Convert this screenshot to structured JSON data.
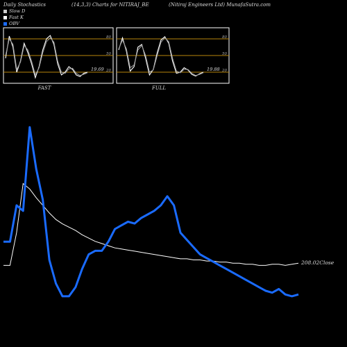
{
  "header": {
    "title": "Daily Stochastics",
    "params": "(14,3,3) Charts for NITIRAJ_BE",
    "company": "(Nitiraj Engineers Ltd) MunafaSutra.com"
  },
  "legend": [
    {
      "label": "Slow  D",
      "color": "#cccccc"
    },
    {
      "label": "Fast K",
      "color": "#ffffff"
    },
    {
      "label": "OBV",
      "color": "#1a6bff"
    }
  ],
  "colors": {
    "background": "#000000",
    "level_line": "#b8860b",
    "obv": "#1a6bff",
    "price": "#ffffff"
  },
  "chart_data": [
    {
      "type": "line",
      "title": "FAST",
      "yticks": [
        20,
        50,
        80
      ],
      "ylim": [
        0,
        100
      ],
      "last_value_label": "19.69",
      "series": [
        {
          "name": "Fast K",
          "values": [
            45,
            85,
            65,
            20,
            40,
            72,
            55,
            35,
            10,
            30,
            60,
            80,
            86,
            70,
            35,
            15,
            20,
            30,
            25,
            15,
            12,
            18,
            20
          ]
        },
        {
          "name": "Slow  D",
          "values": [
            50,
            80,
            70,
            25,
            38,
            68,
            60,
            40,
            15,
            28,
            55,
            75,
            82,
            74,
            40,
            20,
            18,
            26,
            27,
            18,
            14,
            16,
            19
          ]
        }
      ]
    },
    {
      "type": "line",
      "title": "FULL",
      "yticks": [
        20,
        50,
        80
      ],
      "ylim": [
        0,
        100
      ],
      "last_value_label": "19.88",
      "series": [
        {
          "name": "Fast K",
          "values": [
            60,
            82,
            58,
            22,
            30,
            65,
            70,
            45,
            15,
            25,
            55,
            78,
            84,
            72,
            40,
            18,
            20,
            28,
            24,
            16,
            13,
            17,
            20
          ]
        },
        {
          "name": "Slow  D",
          "values": [
            62,
            78,
            62,
            28,
            33,
            60,
            68,
            50,
            20,
            24,
            50,
            74,
            82,
            75,
            45,
            22,
            19,
            25,
            25,
            18,
            14,
            16,
            19
          ]
        }
      ]
    },
    {
      "type": "line",
      "close_label": "208.02Close",
      "series": [
        {
          "name": "OBV",
          "values": [
            0.35,
            0.35,
            0.55,
            0.52,
            0.98,
            0.75,
            0.58,
            0.25,
            0.12,
            0.05,
            0.05,
            0.1,
            0.2,
            0.28,
            0.3,
            0.3,
            0.35,
            0.42,
            0.44,
            0.46,
            0.45,
            0.48,
            0.5,
            0.52,
            0.55,
            0.6,
            0.55,
            0.4,
            0.36,
            0.32,
            0.28,
            0.26,
            0.24,
            0.22,
            0.2,
            0.18,
            0.16,
            0.14,
            0.12,
            0.1,
            0.08,
            0.07,
            0.09,
            0.06,
            0.05,
            0.06
          ]
        },
        {
          "name": "Close",
          "values": [
            0.0,
            0.0,
            0.3,
            0.75,
            0.7,
            0.62,
            0.55,
            0.48,
            0.42,
            0.38,
            0.35,
            0.32,
            0.28,
            0.25,
            0.22,
            0.2,
            0.18,
            0.16,
            0.15,
            0.14,
            0.13,
            0.12,
            0.11,
            0.1,
            0.09,
            0.08,
            0.07,
            0.06,
            0.06,
            0.05,
            0.05,
            0.04,
            0.04,
            0.03,
            0.03,
            0.02,
            0.02,
            0.01,
            0.01,
            0.0,
            0.0,
            0.01,
            0.01,
            0.0,
            0.01,
            0.02
          ]
        }
      ]
    }
  ]
}
